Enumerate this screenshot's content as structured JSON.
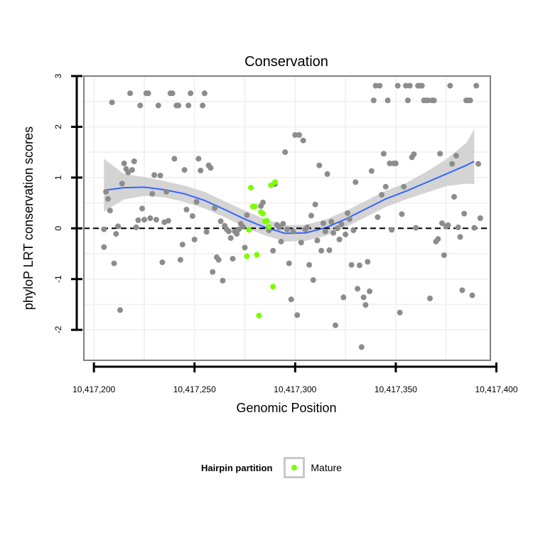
{
  "chart_data": {
    "type": "scatter",
    "title": "Conservation",
    "xlabel": "Genomic Position",
    "ylabel": "phyloP LRT conservation scores",
    "xlim": [
      10417195,
      10417397
    ],
    "ylim": [
      -2.6,
      3.0
    ],
    "x_ticks": [
      10417200,
      10417250,
      10417300,
      10417350,
      10417400
    ],
    "x_tick_labels": [
      "10,417,200",
      "10,417,250",
      "10,417,300",
      "10,417,350",
      "10,417,400"
    ],
    "y_ticks": [
      3,
      2,
      1,
      0,
      -1,
      -2
    ],
    "y_tick_labels": [
      "3",
      "2",
      "1",
      "0",
      "-1",
      "-2"
    ],
    "reference_line": {
      "y": 0,
      "style": "dashed"
    },
    "legend": {
      "title": "Hairpin partition",
      "entries": [
        {
          "label": "Mature",
          "color": "#7cfc00"
        }
      ]
    },
    "colors": {
      "other": "#8c8c8c",
      "mature": "#7cfc00",
      "smooth": "#3366ff",
      "ribbon": "#cccccc",
      "grid": "#f2f2f2",
      "border": "#808080"
    },
    "smooth": {
      "x": [
        10417205,
        10417215,
        10417225,
        10417235,
        10417245,
        10417255,
        10417265,
        10417275,
        10417285,
        10417295,
        10417305,
        10417315,
        10417325,
        10417335,
        10417345,
        10417355,
        10417365,
        10417375,
        10417385,
        10417389
      ],
      "y": [
        0.75,
        0.8,
        0.81,
        0.76,
        0.68,
        0.55,
        0.37,
        0.18,
        0.02,
        -0.1,
        -0.09,
        0.01,
        0.18,
        0.38,
        0.58,
        0.73,
        0.9,
        1.07,
        1.24,
        1.32
      ],
      "lower": [
        0.33,
        0.57,
        0.64,
        0.61,
        0.52,
        0.39,
        0.22,
        0.02,
        -0.14,
        -0.26,
        -0.25,
        -0.15,
        0.02,
        0.22,
        0.42,
        0.57,
        0.7,
        0.83,
        0.88,
        0.87
      ],
      "upper": [
        1.37,
        1.07,
        1.01,
        0.93,
        0.84,
        0.72,
        0.53,
        0.35,
        0.18,
        0.06,
        0.07,
        0.17,
        0.34,
        0.54,
        0.74,
        0.89,
        1.11,
        1.36,
        1.68,
        1.95
      ]
    },
    "series": [
      {
        "name": "Other",
        "points": [
          [
            10417205,
            -0.02
          ],
          [
            10417205,
            -0.37
          ],
          [
            10417206,
            0.72
          ],
          [
            10417207,
            0.58
          ],
          [
            10417208,
            0.35
          ],
          [
            10417209,
            2.48
          ],
          [
            10417210,
            -0.69
          ],
          [
            10417211,
            -0.11
          ],
          [
            10417212,
            0.04
          ],
          [
            10417213,
            -1.61
          ],
          [
            10417214,
            0.88
          ],
          [
            10417215,
            1.28
          ],
          [
            10417216,
            1.17
          ],
          [
            10417217,
            1.1
          ],
          [
            10417218,
            2.66
          ],
          [
            10417219,
            1.15
          ],
          [
            10417220,
            1.32
          ],
          [
            10417221,
            0.02
          ],
          [
            10417222,
            0.16
          ],
          [
            10417223,
            2.42
          ],
          [
            10417224,
            0.39
          ],
          [
            10417225,
            0.17
          ],
          [
            10417226,
            2.66
          ],
          [
            10417227,
            2.66
          ],
          [
            10417228,
            0.2
          ],
          [
            10417229,
            0.68
          ],
          [
            10417230,
            1.05
          ],
          [
            10417231,
            0.17
          ],
          [
            10417232,
            2.42
          ],
          [
            10417233,
            1.04
          ],
          [
            10417234,
            -0.67
          ],
          [
            10417235,
            0.12
          ],
          [
            10417236,
            0.72
          ],
          [
            10417237,
            0.15
          ],
          [
            10417238,
            2.66
          ],
          [
            10417239,
            2.66
          ],
          [
            10417240,
            1.37
          ],
          [
            10417241,
            2.42
          ],
          [
            10417242,
            2.42
          ],
          [
            10417243,
            -0.62
          ],
          [
            10417244,
            -0.32
          ],
          [
            10417245,
            1.15
          ],
          [
            10417246,
            0.37
          ],
          [
            10417247,
            2.42
          ],
          [
            10417248,
            2.66
          ],
          [
            10417249,
            0.24
          ],
          [
            10417250,
            -0.22
          ],
          [
            10417251,
            0.52
          ],
          [
            10417252,
            1.37
          ],
          [
            10417253,
            1.14
          ],
          [
            10417254,
            2.42
          ],
          [
            10417255,
            2.66
          ],
          [
            10417256,
            -0.07
          ],
          [
            10417257,
            1.24
          ],
          [
            10417258,
            1.19
          ],
          [
            10417259,
            -0.86
          ],
          [
            10417260,
            0.4
          ],
          [
            10417261,
            -0.57
          ],
          [
            10417262,
            -0.62
          ],
          [
            10417263,
            0.14
          ],
          [
            10417264,
            -1.03
          ],
          [
            10417265,
            0.05
          ],
          [
            10417266,
            -0.02
          ],
          [
            10417267,
            -0.06
          ],
          [
            10417268,
            -0.19
          ],
          [
            10417269,
            -0.6
          ],
          [
            10417270,
            -0.06
          ],
          [
            10417271,
            -0.11
          ],
          [
            10417272,
            -0.02
          ],
          [
            10417273,
            0.09
          ],
          [
            10417274,
            0.03
          ],
          [
            10417275,
            -0.38
          ],
          [
            10417276,
            0.26
          ],
          [
            10417283,
            0.44
          ],
          [
            10417284,
            0.51
          ],
          [
            10417287,
            -0.04
          ],
          [
            10417289,
            -0.44
          ],
          [
            10417290,
            0.87
          ],
          [
            10417291,
            0.07
          ],
          [
            10417292,
            0.02
          ],
          [
            10417293,
            -0.26
          ],
          [
            10417294,
            0.09
          ],
          [
            10417295,
            1.5
          ],
          [
            10417296,
            -0.02
          ],
          [
            10417297,
            -0.69
          ],
          [
            10417298,
            -1.4
          ],
          [
            10417299,
            -0.06
          ],
          [
            10417300,
            1.84
          ],
          [
            10417301,
            -1.71
          ],
          [
            10417302,
            1.84
          ],
          [
            10417303,
            -0.28
          ],
          [
            10417304,
            1.73
          ],
          [
            10417305,
            -0.02
          ],
          [
            10417306,
            0.02
          ],
          [
            10417307,
            -0.72
          ],
          [
            10417308,
            0.25
          ],
          [
            10417309,
            -1.02
          ],
          [
            10417310,
            0.47
          ],
          [
            10417311,
            -0.24
          ],
          [
            10417312,
            1.24
          ],
          [
            10417313,
            -0.44
          ],
          [
            10417314,
            0.1
          ],
          [
            10417315,
            -0.06
          ],
          [
            10417316,
            1.07
          ],
          [
            10417317,
            -0.43
          ],
          [
            10417318,
            0.13
          ],
          [
            10417319,
            -0.09
          ],
          [
            10417320,
            -1.91
          ],
          [
            10417321,
            0.0
          ],
          [
            10417322,
            -0.22
          ],
          [
            10417323,
            0.08
          ],
          [
            10417324,
            -1.36
          ],
          [
            10417325,
            -0.12
          ],
          [
            10417326,
            0.3
          ],
          [
            10417327,
            0.18
          ],
          [
            10417328,
            -0.72
          ],
          [
            10417329,
            -0.04
          ],
          [
            10417330,
            0.91
          ],
          [
            10417331,
            -1.19
          ],
          [
            10417332,
            -0.73
          ],
          [
            10417333,
            -2.34
          ],
          [
            10417334,
            -1.36
          ],
          [
            10417335,
            -1.51
          ],
          [
            10417336,
            -0.66
          ],
          [
            10417337,
            -1.24
          ],
          [
            10417338,
            1.13
          ],
          [
            10417339,
            2.52
          ],
          [
            10417340,
            2.81
          ],
          [
            10417341,
            0.22
          ],
          [
            10417342,
            2.81
          ],
          [
            10417343,
            0.66
          ],
          [
            10417344,
            1.47
          ],
          [
            10417345,
            0.82
          ],
          [
            10417346,
            2.52
          ],
          [
            10417347,
            1.28
          ],
          [
            10417348,
            -0.03
          ],
          [
            10417349,
            1.28
          ],
          [
            10417350,
            1.28
          ],
          [
            10417351,
            2.81
          ],
          [
            10417352,
            -1.66
          ],
          [
            10417353,
            0.28
          ],
          [
            10417354,
            0.82
          ],
          [
            10417355,
            2.81
          ],
          [
            10417356,
            2.52
          ],
          [
            10417357,
            2.81
          ],
          [
            10417358,
            1.4
          ],
          [
            10417359,
            1.46
          ],
          [
            10417360,
            0.01
          ],
          [
            10417361,
            2.81
          ],
          [
            10417362,
            2.81
          ],
          [
            10417363,
            2.81
          ],
          [
            10417364,
            2.52
          ],
          [
            10417365,
            2.52
          ],
          [
            10417366,
            2.52
          ],
          [
            10417367,
            -1.38
          ],
          [
            10417368,
            2.52
          ],
          [
            10417369,
            2.52
          ],
          [
            10417370,
            -0.26
          ],
          [
            10417371,
            -0.21
          ],
          [
            10417372,
            1.47
          ],
          [
            10417373,
            0.1
          ],
          [
            10417374,
            -0.53
          ],
          [
            10417375,
            0.04
          ],
          [
            10417376,
            0.06
          ],
          [
            10417377,
            2.81
          ],
          [
            10417378,
            1.27
          ],
          [
            10417379,
            0.62
          ],
          [
            10417380,
            1.43
          ],
          [
            10417381,
            0.02
          ],
          [
            10417382,
            -0.17
          ],
          [
            10417383,
            -1.22
          ],
          [
            10417384,
            0.29
          ],
          [
            10417385,
            2.52
          ],
          [
            10417386,
            2.52
          ],
          [
            10417387,
            2.52
          ],
          [
            10417388,
            -1.32
          ],
          [
            10417389,
            0.01
          ],
          [
            10417390,
            2.81
          ],
          [
            10417391,
            1.27
          ],
          [
            10417392,
            0.2
          ]
        ]
      },
      {
        "name": "Mature",
        "points": [
          [
            10417276,
            -0.55
          ],
          [
            10417277,
            -0.03
          ],
          [
            10417278,
            0.8
          ],
          [
            10417279,
            0.43
          ],
          [
            10417280,
            0.43
          ],
          [
            10417281,
            -0.52
          ],
          [
            10417282,
            -1.72
          ],
          [
            10417283,
            0.32
          ],
          [
            10417284,
            0.29
          ],
          [
            10417285,
            0.14
          ],
          [
            10417286,
            0.15
          ],
          [
            10417287,
            0.03
          ],
          [
            10417288,
            0.85
          ],
          [
            10417289,
            -1.15
          ],
          [
            10417290,
            0.91
          ]
        ]
      }
    ]
  }
}
